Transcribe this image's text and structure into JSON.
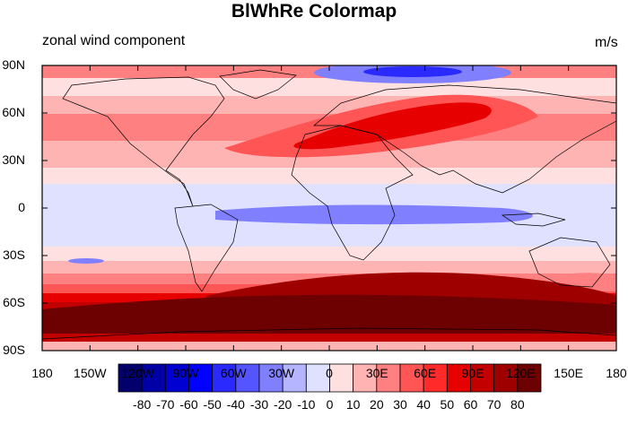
{
  "title": "BlWhRe Colormap",
  "left_string": "zonal wind component",
  "right_string": "m/s",
  "chart_data": {
    "type": "heatmap",
    "title": "BlWhRe Colormap",
    "variable": "zonal wind component",
    "units": "m/s",
    "projection": "cylindrical equidistant",
    "x_ticks": [
      "180",
      "150W",
      "120W",
      "90W",
      "60W",
      "30W",
      "0",
      "30E",
      "60E",
      "90E",
      "120E",
      "150E",
      "180"
    ],
    "y_ticks": [
      "90N",
      "60N",
      "30N",
      "0",
      "30S",
      "60S",
      "90S"
    ],
    "xlim": [
      -180,
      180
    ],
    "ylim": [
      -90,
      90
    ],
    "colorbar": {
      "labels": [
        "-80",
        "-70",
        "-60",
        "-50",
        "-40",
        "-30",
        "-20",
        "-10",
        "0",
        "10",
        "20",
        "30",
        "40",
        "50",
        "60",
        "70",
        "80"
      ],
      "colors": [
        "#03006d",
        "#0000a6",
        "#0000d2",
        "#0000ff",
        "#2a2aff",
        "#5555ff",
        "#8080ff",
        "#b4b4ff",
        "#e0e0ff",
        "#ffe0e0",
        "#ffb4b4",
        "#ff8080",
        "#ff5555",
        "#ff2a2a",
        "#e60000",
        "#c30000",
        "#9e0000",
        "#6d0000"
      ],
      "orientation": "horizontal"
    },
    "zonal_profile": [
      {
        "lat": -88,
        "value": 75
      },
      {
        "lat": -75,
        "value": 78
      },
      {
        "lat": -62,
        "value": 65
      },
      {
        "lat": -52,
        "value": 45
      },
      {
        "lat": -40,
        "value": 18
      },
      {
        "lat": -30,
        "value": 5
      },
      {
        "lat": -15,
        "value": -5
      },
      {
        "lat": 0,
        "value": -12
      },
      {
        "lat": 15,
        "value": -3
      },
      {
        "lat": 30,
        "value": 20
      },
      {
        "lat": 45,
        "value": 30
      },
      {
        "lat": 60,
        "value": 15
      },
      {
        "lat": 75,
        "value": 2
      },
      {
        "lat": 88,
        "value": -30
      }
    ]
  }
}
